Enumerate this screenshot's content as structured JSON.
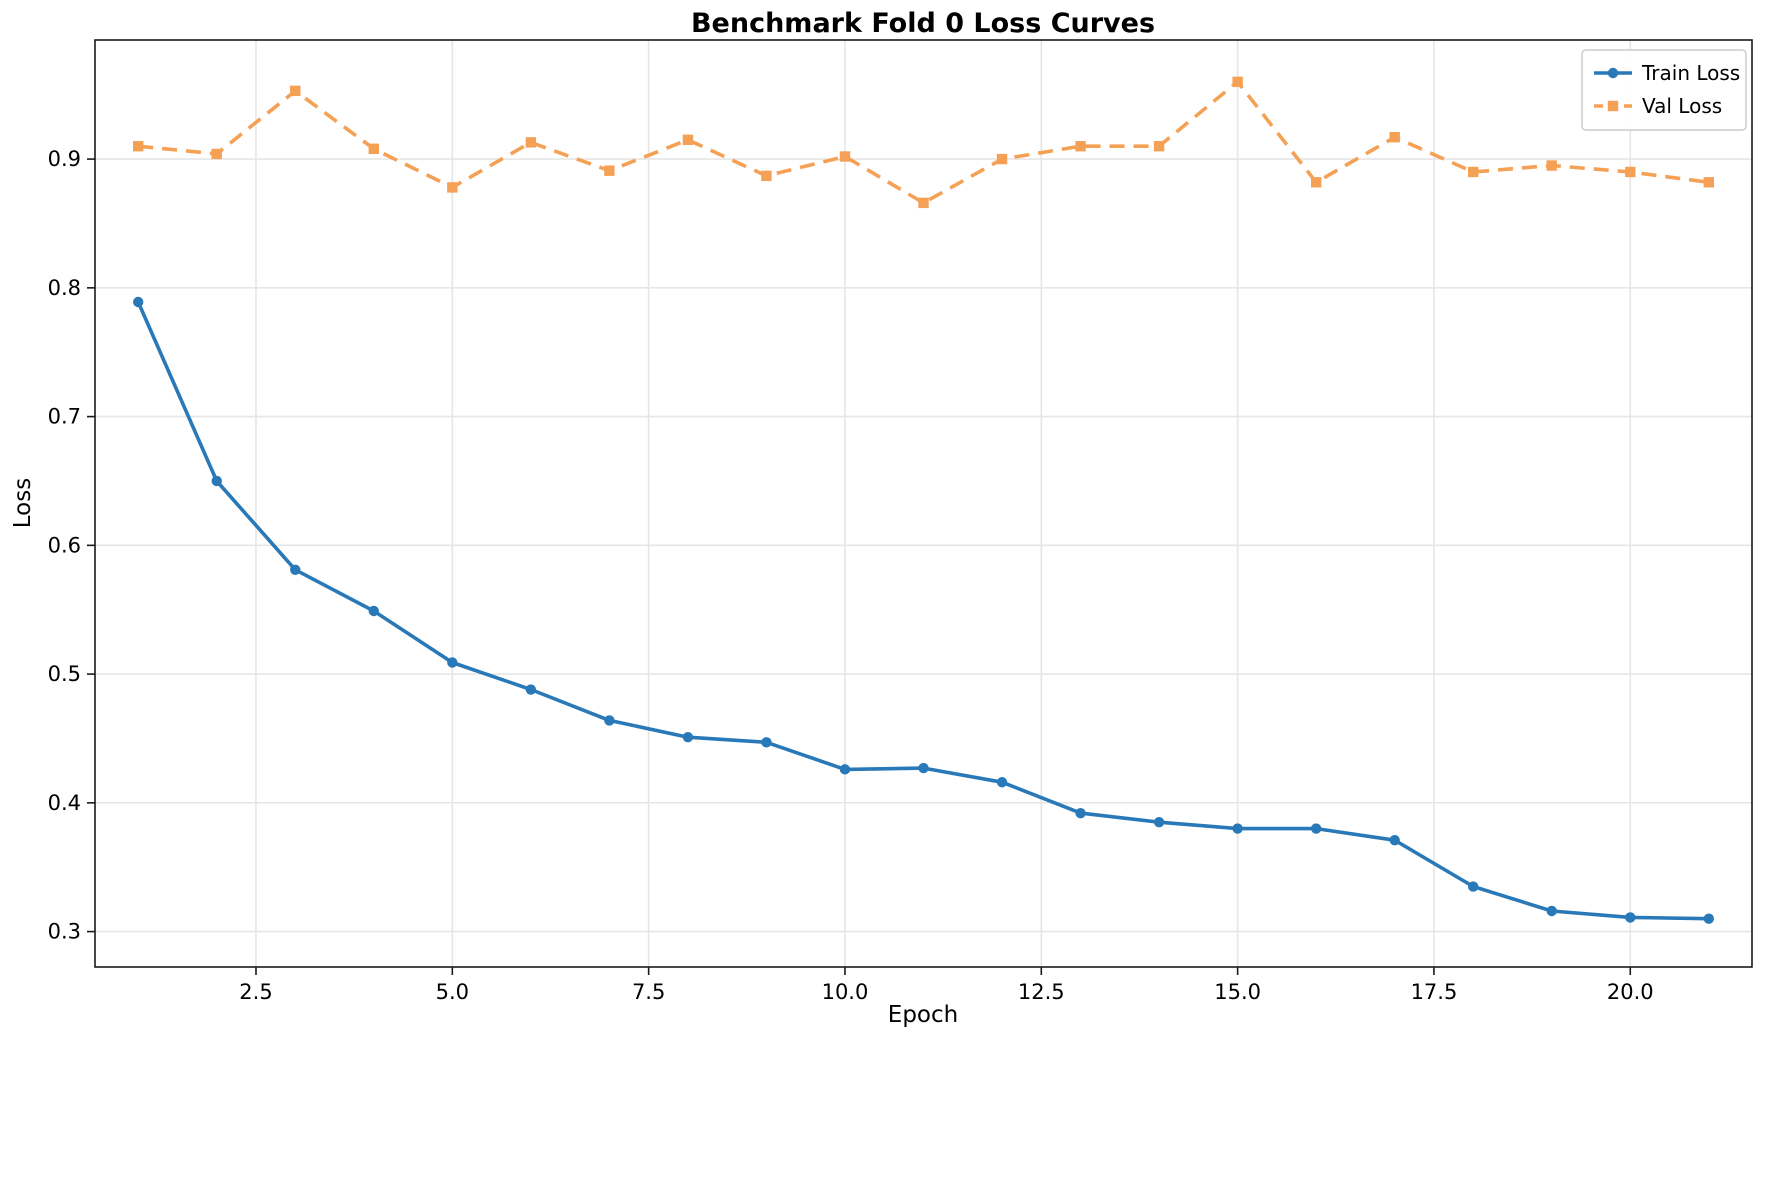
{
  "chart_data": {
    "type": "line",
    "title": "Benchmark Fold 0 Loss Curves",
    "xlabel": "Epoch",
    "ylabel": "Loss",
    "x": [
      1,
      2,
      3,
      4,
      5,
      6,
      7,
      8,
      9,
      10,
      11,
      12,
      13,
      14,
      15,
      16,
      17,
      18,
      19,
      20,
      21
    ],
    "series": [
      {
        "name": "Train Loss",
        "color": "#2979b8",
        "style": "solid",
        "marker": "circle",
        "values": [
          0.789,
          0.65,
          0.581,
          0.549,
          0.509,
          0.488,
          0.464,
          0.451,
          0.447,
          0.426,
          0.427,
          0.416,
          0.392,
          0.385,
          0.38,
          0.38,
          0.371,
          0.335,
          0.316,
          0.311,
          0.31
        ]
      },
      {
        "name": "Val Loss",
        "color": "#f5a155",
        "style": "dashed",
        "marker": "square",
        "values": [
          0.91,
          0.904,
          0.953,
          0.908,
          0.878,
          0.913,
          0.891,
          0.915,
          0.887,
          0.902,
          0.866,
          0.9,
          0.91,
          0.91,
          0.96,
          0.882,
          0.917,
          0.89,
          0.895,
          0.89,
          0.882
        ]
      }
    ],
    "xlim": [
      0.45,
      21.55
    ],
    "ylim": [
      0.2725,
      0.9925
    ],
    "xticks": [
      2.5,
      5.0,
      7.5,
      10.0,
      12.5,
      15.0,
      17.5,
      20.0
    ],
    "xtick_labels": [
      "2.5",
      "5.0",
      "7.5",
      "10.0",
      "12.5",
      "15.0",
      "17.5",
      "20.0"
    ],
    "yticks": [
      0.3,
      0.4,
      0.5,
      0.6,
      0.7,
      0.8,
      0.9
    ],
    "ytick_labels": [
      "0.3",
      "0.4",
      "0.5",
      "0.6",
      "0.7",
      "0.8",
      "0.9"
    ],
    "grid": true,
    "grid_color": "#e6e6e6",
    "axis_color": "#1a1a1a",
    "legend_position": "upper right",
    "legend_labels": [
      "Train Loss",
      "Val Loss"
    ]
  }
}
